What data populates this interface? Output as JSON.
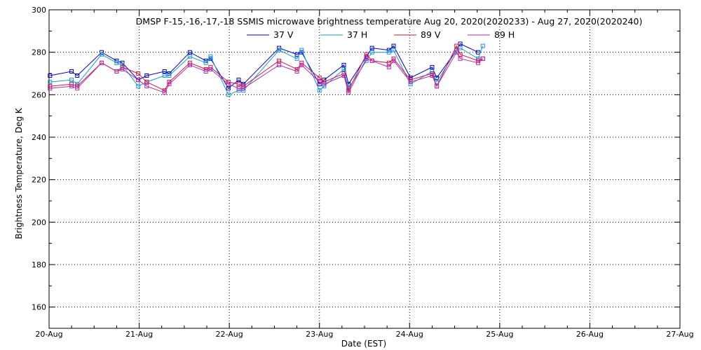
{
  "chart_data": {
    "type": "line",
    "title": "DMSP F-15,-16,-17,-18 SSMIS microwave brightness temperature Aug 20, 2020(2020233) - Aug 27, 2020(2020240)",
    "xlabel": "Date (EST)",
    "ylabel": "Brightness Temperature, Deg K",
    "xlim": [
      "2020-08-20T00:00",
      "2020-08-27T00:00"
    ],
    "ylim": [
      150,
      300
    ],
    "x_ticks": [
      "20-Aug",
      "21-Aug",
      "22-Aug",
      "23-Aug",
      "24-Aug",
      "25-Aug",
      "26-Aug",
      "27-Aug"
    ],
    "y_ticks": [
      160,
      180,
      200,
      220,
      240,
      260,
      280,
      300
    ],
    "grid": true,
    "legend_position": "top-center",
    "colors": {
      "37 V": "#0000cc",
      "37 H": "#1a9ad6",
      "89 V": "#d4143c",
      "89 H": "#b42ab4"
    },
    "x": [
      "2020-08-20T00:15",
      "2020-08-20T06:00",
      "2020-08-20T07:30",
      "2020-08-20T14:00",
      "2020-08-20T18:00",
      "2020-08-20T19:30",
      "2020-08-20T23:45",
      "2020-08-21T02:00",
      "2020-08-21T06:45",
      "2020-08-21T08:00",
      "2020-08-21T13:30",
      "2020-08-21T17:45",
      "2020-08-21T19:00",
      "2020-08-21T23:45",
      "2020-08-22T02:30",
      "2020-08-22T03:45",
      "2020-08-22T13:15",
      "2020-08-22T18:00",
      "2020-08-22T19:15",
      "2020-08-23T00:00",
      "2020-08-23T01:15",
      "2020-08-23T06:30",
      "2020-08-23T07:45",
      "2020-08-23T12:30",
      "2020-08-23T14:00",
      "2020-08-23T18:30",
      "2020-08-23T19:45",
      "2020-08-24T00:15",
      "2020-08-24T06:00",
      "2020-08-24T07:15",
      "2020-08-24T12:30",
      "2020-08-24T13:30",
      "2020-08-24T18:15",
      "2020-08-24T19:30"
    ],
    "series": [
      {
        "name": "37 V",
        "values": [
          269,
          271,
          269,
          280,
          276,
          275,
          267,
          269,
          271,
          270,
          280,
          276,
          277,
          263,
          267,
          265,
          282,
          279,
          280,
          265,
          267,
          274,
          265,
          278,
          282,
          281,
          283,
          268,
          273,
          268,
          281,
          284,
          280,
          null
        ]
      },
      {
        "name": "37 H",
        "values": [
          266,
          267,
          265,
          279,
          275,
          274,
          264,
          266,
          269,
          269,
          278,
          275,
          278,
          260,
          262,
          262,
          281,
          277,
          281,
          262,
          264,
          272,
          263,
          276,
          280,
          280,
          281,
          265,
          271,
          266,
          281,
          282,
          277,
          283
        ]
      },
      {
        "name": "89 V",
        "values": [
          264,
          265,
          264,
          275,
          271,
          273,
          270,
          266,
          262,
          266,
          275,
          272,
          273,
          266,
          265,
          264,
          276,
          272,
          275,
          268,
          266,
          270,
          262,
          279,
          276,
          275,
          277,
          267,
          270,
          264,
          283,
          279,
          276,
          277
        ]
      },
      {
        "name": "89 H",
        "values": [
          263,
          264,
          263,
          275,
          271,
          272,
          267,
          264,
          261,
          265,
          274,
          271,
          272,
          265,
          263,
          263,
          274,
          271,
          274,
          266,
          265,
          269,
          261,
          277,
          276,
          273,
          276,
          266,
          269,
          264,
          280,
          277,
          275,
          277
        ]
      }
    ]
  }
}
